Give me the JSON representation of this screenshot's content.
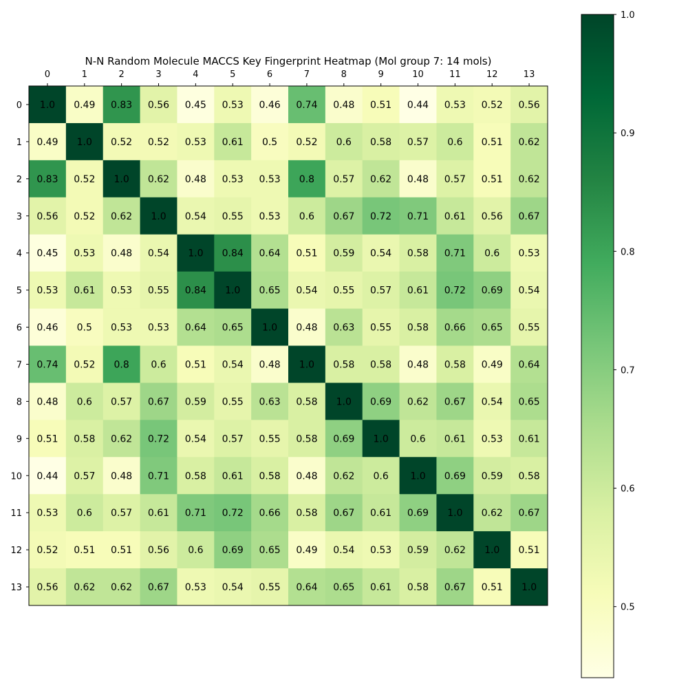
{
  "chart_data": {
    "type": "heatmap",
    "title": "N-N Random Molecule MACCS Key Fingerprint Heatmap (Mol group 7: 14 mols)",
    "x_ticks": [
      "0",
      "1",
      "2",
      "3",
      "4",
      "5",
      "6",
      "7",
      "8",
      "9",
      "10",
      "11",
      "12",
      "13"
    ],
    "y_ticks": [
      "0",
      "1",
      "2",
      "3",
      "4",
      "5",
      "6",
      "7",
      "8",
      "9",
      "10",
      "11",
      "12",
      "13"
    ],
    "cell_labels": [
      [
        "1.0",
        "0.49",
        "0.83",
        "0.56",
        "0.45",
        "0.53",
        "0.46",
        "0.74",
        "0.48",
        "0.51",
        "0.44",
        "0.53",
        "0.52",
        "0.56"
      ],
      [
        "0.49",
        "1.0",
        "0.52",
        "0.52",
        "0.53",
        "0.61",
        "0.5",
        "0.52",
        "0.6",
        "0.58",
        "0.57",
        "0.6",
        "0.51",
        "0.62"
      ],
      [
        "0.83",
        "0.52",
        "1.0",
        "0.62",
        "0.48",
        "0.53",
        "0.53",
        "0.8",
        "0.57",
        "0.62",
        "0.48",
        "0.57",
        "0.51",
        "0.62"
      ],
      [
        "0.56",
        "0.52",
        "0.62",
        "1.0",
        "0.54",
        "0.55",
        "0.53",
        "0.6",
        "0.67",
        "0.72",
        "0.71",
        "0.61",
        "0.56",
        "0.67"
      ],
      [
        "0.45",
        "0.53",
        "0.48",
        "0.54",
        "1.0",
        "0.84",
        "0.64",
        "0.51",
        "0.59",
        "0.54",
        "0.58",
        "0.71",
        "0.6",
        "0.53"
      ],
      [
        "0.53",
        "0.61",
        "0.53",
        "0.55",
        "0.84",
        "1.0",
        "0.65",
        "0.54",
        "0.55",
        "0.57",
        "0.61",
        "0.72",
        "0.69",
        "0.54"
      ],
      [
        "0.46",
        "0.5",
        "0.53",
        "0.53",
        "0.64",
        "0.65",
        "1.0",
        "0.48",
        "0.63",
        "0.55",
        "0.58",
        "0.66",
        "0.65",
        "0.55"
      ],
      [
        "0.74",
        "0.52",
        "0.8",
        "0.6",
        "0.51",
        "0.54",
        "0.48",
        "1.0",
        "0.58",
        "0.58",
        "0.48",
        "0.58",
        "0.49",
        "0.64"
      ],
      [
        "0.48",
        "0.6",
        "0.57",
        "0.67",
        "0.59",
        "0.55",
        "0.63",
        "0.58",
        "1.0",
        "0.69",
        "0.62",
        "0.67",
        "0.54",
        "0.65"
      ],
      [
        "0.51",
        "0.58",
        "0.62",
        "0.72",
        "0.54",
        "0.57",
        "0.55",
        "0.58",
        "0.69",
        "1.0",
        "0.6",
        "0.61",
        "0.53",
        "0.61"
      ],
      [
        "0.44",
        "0.57",
        "0.48",
        "0.71",
        "0.58",
        "0.61",
        "0.58",
        "0.48",
        "0.62",
        "0.6",
        "1.0",
        "0.69",
        "0.59",
        "0.58"
      ],
      [
        "0.53",
        "0.6",
        "0.57",
        "0.61",
        "0.71",
        "0.72",
        "0.66",
        "0.58",
        "0.67",
        "0.61",
        "0.69",
        "1.0",
        "0.62",
        "0.67"
      ],
      [
        "0.52",
        "0.51",
        "0.51",
        "0.56",
        "0.6",
        "0.69",
        "0.65",
        "0.49",
        "0.54",
        "0.53",
        "0.59",
        "0.62",
        "1.0",
        "0.51"
      ],
      [
        "0.56",
        "0.62",
        "0.62",
        "0.67",
        "0.53",
        "0.54",
        "0.55",
        "0.64",
        "0.65",
        "0.61",
        "0.58",
        "0.67",
        "0.51",
        "1.0"
      ]
    ],
    "colorbar": {
      "colormap": "YlGn",
      "min": 0.44,
      "max": 1.0,
      "tick_values": [
        0.5,
        0.6,
        0.7,
        0.8,
        0.9,
        1.0
      ],
      "tick_labels": [
        "0.5",
        "0.6",
        "0.7",
        "0.8",
        "0.9",
        "1.0"
      ]
    },
    "x_tick_position": "top",
    "grid": false
  }
}
